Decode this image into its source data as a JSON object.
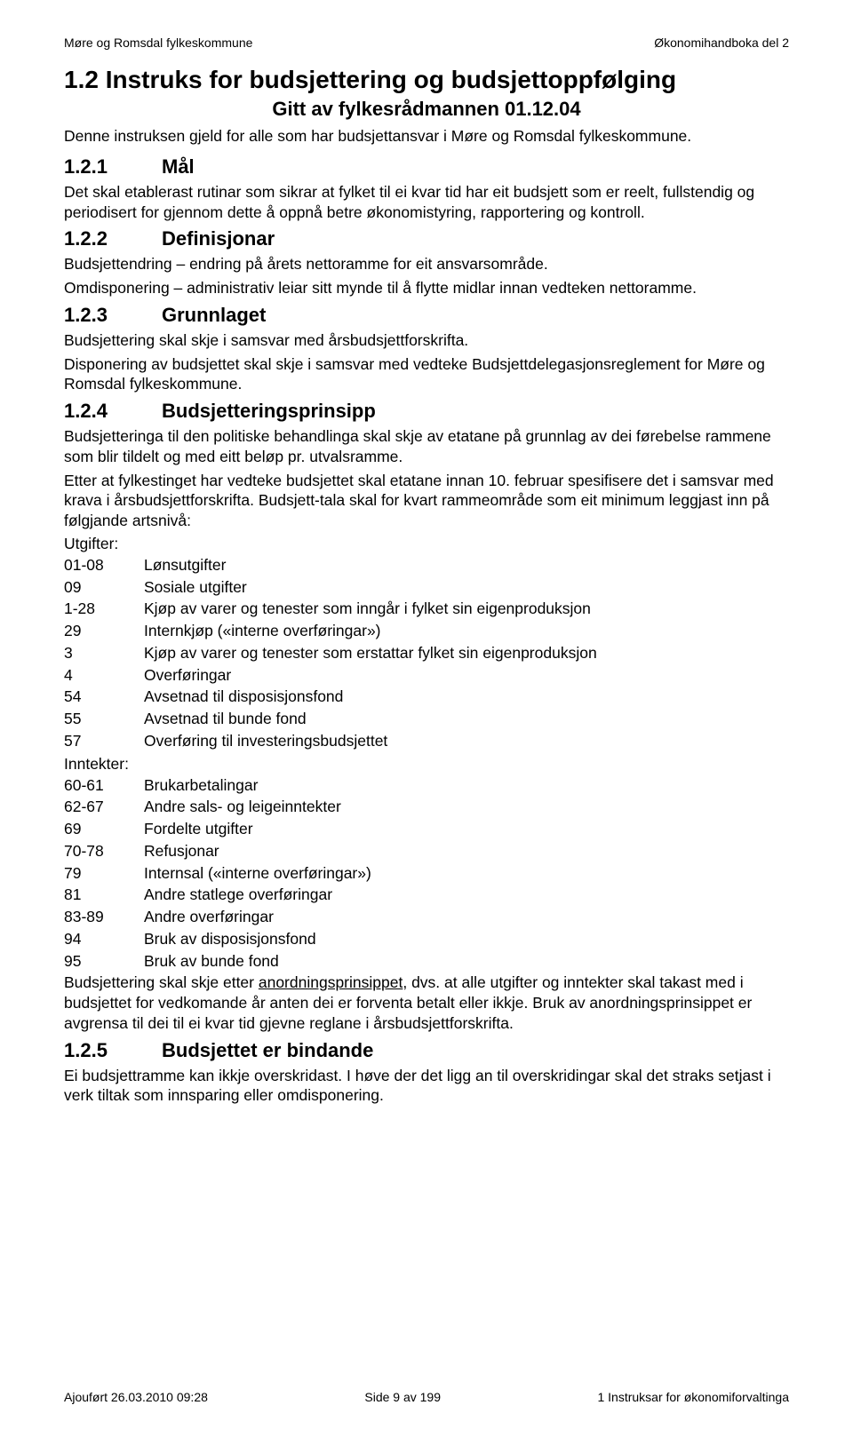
{
  "header": {
    "left": "Møre og Romsdal fylkeskommune",
    "right": "Økonomihandboka del 2"
  },
  "title": "1.2 Instruks for budsjettering og budsjettoppfølging",
  "subtitle": "Gitt av fylkesrådmannen 01.12.04",
  "intro": "Denne instruksen gjeld for alle som har budsjettansvar i Møre og Romsdal fylkeskommune.",
  "s121": {
    "num": "1.2.1",
    "title": "Mål",
    "body": "Det skal etablerast rutinar som sikrar at fylket til ei kvar tid har eit budsjett som er reelt, fullstendig og periodisert for gjennom dette å oppnå betre økonomistyring, rapportering og kontroll."
  },
  "s122": {
    "num": "1.2.2",
    "title": "Definisjonar",
    "p1": "Budsjettendring – endring på årets nettoramme for eit ansvarsområde.",
    "p2": "Omdisponering – administrativ leiar sitt mynde til å flytte midlar innan vedteken nettoramme."
  },
  "s123": {
    "num": "1.2.3",
    "title": "Grunnlaget",
    "p1": "Budsjettering skal skje i samsvar med årsbudsjettforskrifta.",
    "p2": "Disponering av budsjettet skal skje i samsvar med vedteke Budsjettdelegasjonsreglement for Møre og Romsdal fylkeskommune."
  },
  "s124": {
    "num": "1.2.4",
    "title": "Budsjetteringsprinsipp",
    "p1": "Budsjetteringa til den politiske behandlinga skal skje av etatane på grunnlag av dei førebelse rammene som blir tildelt og med eitt beløp pr. utvalsramme.",
    "p2": "Etter at fylkestinget har vedteke budsjettet skal etatane innan 10. februar spesifisere det i samsvar med krava i årsbudsjettforskrifta. Budsjett-tala skal for kvart rammeområde som eit minimum leggjast inn på følgjande artsnivå:",
    "utgifter_label": "Utgifter:",
    "utgifter": [
      {
        "code": "01-08",
        "label": "Lønsutgifter"
      },
      {
        "code": "09",
        "label": "Sosiale utgifter"
      },
      {
        "code": "1-28",
        "label": "Kjøp av varer og tenester som inngår i fylket sin eigenproduksjon"
      },
      {
        "code": "29",
        "label": "Internkjøp («interne overføringar»)"
      },
      {
        "code": "3",
        "label": "Kjøp av varer og tenester som erstattar fylket sin eigenproduksjon"
      },
      {
        "code": "4",
        "label": "Overføringar"
      },
      {
        "code": "54",
        "label": "Avsetnad til disposisjonsfond"
      },
      {
        "code": "55",
        "label": "Avsetnad til bunde fond"
      },
      {
        "code": "57",
        "label": "Overføring til investeringsbudsjettet"
      }
    ],
    "inntekter_label": "Inntekter:",
    "inntekter": [
      {
        "code": "60-61",
        "label": "Brukarbetalingar"
      },
      {
        "code": "62-67",
        "label": "Andre sals- og leigeinntekter"
      },
      {
        "code": "69",
        "label": "Fordelte utgifter"
      },
      {
        "code": "70-78",
        "label": "Refusjonar"
      },
      {
        "code": "79",
        "label": "Internsal («interne overføringar»)"
      },
      {
        "code": "81",
        "label": "Andre statlege overføringar"
      },
      {
        "code": "83-89",
        "label": "Andre overføringar"
      },
      {
        "code": "94",
        "label": "Bruk av disposisjonsfond"
      },
      {
        "code": "95",
        "label": "Bruk av bunde fond"
      }
    ],
    "p3_pre": "Budsjettering skal skje etter ",
    "p3_u": "anordningsprinsippet",
    "p3_post": ", dvs. at alle utgifter og inntekter skal takast med i budsjettet for vedkomande år anten dei er forventa betalt eller ikkje. Bruk av anordningsprinsippet er avgrensa til dei til ei kvar tid gjevne reglane i årsbudsjettforskrifta."
  },
  "s125": {
    "num": "1.2.5",
    "title": "Budsjettet er bindande",
    "p1": "Ei budsjettramme kan ikkje overskridast. I høve der det ligg an til overskridingar skal det straks setjast i verk tiltak som innsparing eller omdisponering."
  },
  "footer": {
    "left": "Ajouført 26.03.2010 09:28",
    "center": "Side 9 av 199",
    "right": "1 Instruksar for økonomiforvaltinga"
  }
}
